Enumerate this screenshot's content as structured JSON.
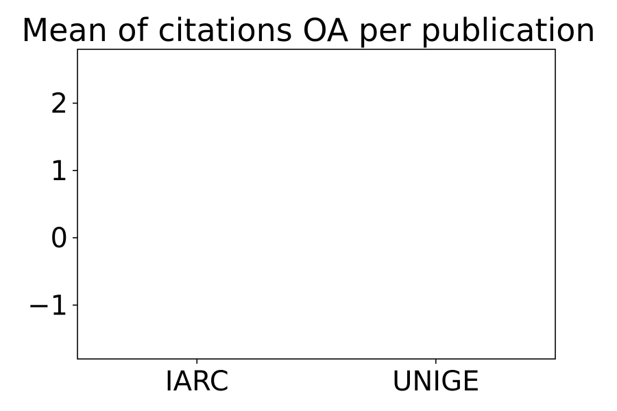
{
  "chart_data": {
    "type": "bar",
    "title": "Mean of citations OA per publication",
    "xlabel": "",
    "ylabel": "",
    "categories": [
      "IARC",
      "UNIGE"
    ],
    "values": [
      null,
      null
    ],
    "ylim": [
      -1.8,
      2.8
    ],
    "yticks": [
      -1,
      0,
      1,
      2
    ],
    "ytick_labels": [
      "−1",
      "0",
      "1",
      "2"
    ],
    "grid": false,
    "colors": {
      "axis": "#000000",
      "background": "#ffffff",
      "bar": "#1f77b4"
    }
  }
}
